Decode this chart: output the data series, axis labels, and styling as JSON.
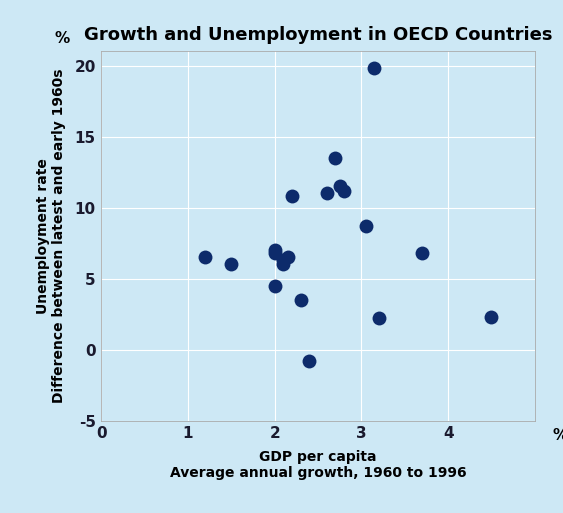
{
  "title": "Growth and Unemployment in OECD Countries",
  "xlabel_line1": "GDP per capita",
  "xlabel_line2": "Average annual growth, 1960 to 1996",
  "ylabel_line1": "Unemployment rate",
  "ylabel_line2": "Difference between latest and early 1960s",
  "x_pct_label": "%",
  "y_pct_label": "%",
  "xlim": [
    0,
    5
  ],
  "ylim": [
    -5,
    21
  ],
  "xticks": [
    0,
    1,
    2,
    3,
    4
  ],
  "yticks": [
    -5,
    0,
    5,
    10,
    15,
    20
  ],
  "background_color": "#cde8f5",
  "dot_color": "#0d2b6b",
  "dot_size": 100,
  "data_points": [
    [
      1.2,
      6.5
    ],
    [
      1.5,
      6.0
    ],
    [
      2.0,
      7.0
    ],
    [
      2.0,
      6.8
    ],
    [
      2.0,
      4.5
    ],
    [
      2.1,
      6.3
    ],
    [
      2.1,
      6.0
    ],
    [
      2.15,
      6.5
    ],
    [
      2.2,
      10.8
    ],
    [
      2.3,
      3.5
    ],
    [
      2.4,
      -0.8
    ],
    [
      2.6,
      11.0
    ],
    [
      2.7,
      13.5
    ],
    [
      2.75,
      11.5
    ],
    [
      2.8,
      11.2
    ],
    [
      3.05,
      8.7
    ],
    [
      3.2,
      2.2
    ],
    [
      3.7,
      6.8
    ],
    [
      3.15,
      19.8
    ],
    [
      4.5,
      2.3
    ]
  ]
}
